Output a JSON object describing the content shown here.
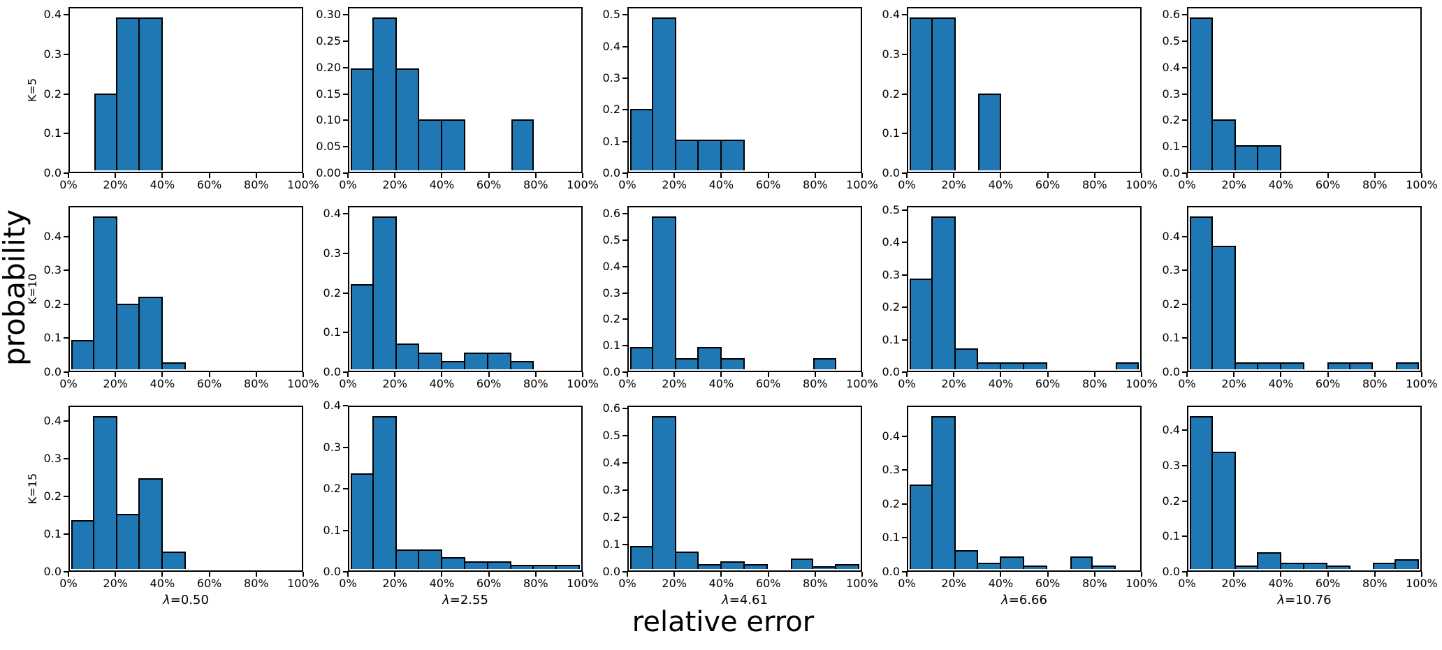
{
  "figure": {
    "ylabel": "probability",
    "xlabel": "relative error"
  },
  "style": {
    "bar_color": "#1f77b4",
    "edge_color": "#000000",
    "background": "#ffffff"
  },
  "chart_data": {
    "type": "bar",
    "subtype": "histogram-grid",
    "grid": "3 rows x 5 columns, shared x axis 0%-100%, bin width 10%",
    "row_labels": [
      "K=5",
      "K=10",
      "K=15"
    ],
    "col_labels": [
      "λ=0.50",
      "λ=2.55",
      "λ=4.61",
      "λ=6.66",
      "λ=10.76"
    ],
    "xlabel": "relative error",
    "ylabel": "probability",
    "xtick_labels": [
      "0%",
      "20%",
      "40%",
      "60%",
      "80%",
      "100%"
    ],
    "xtick_positions_pct": [
      0,
      20,
      40,
      60,
      80,
      100
    ],
    "bin_edges_pct": [
      0,
      10,
      20,
      30,
      40,
      50,
      60,
      70,
      80,
      90,
      100
    ],
    "subplots": [
      {
        "row": 0,
        "col": 0,
        "k_label": "K=5",
        "lambda_label": "λ=0.50",
        "values": [
          0,
          0.2,
          0.4,
          0.4,
          0,
          0,
          0,
          0,
          0,
          0
        ],
        "yticks": [
          0.0,
          0.1,
          0.2,
          0.3,
          0.4
        ],
        "ytick_decimals": 1,
        "ymax": 0.42
      },
      {
        "row": 0,
        "col": 1,
        "k_label": "K=5",
        "lambda_label": "λ=2.55",
        "values": [
          0.2,
          0.3,
          0.2,
          0.1,
          0.1,
          0,
          0,
          0.1,
          0,
          0
        ],
        "yticks": [
          0.0,
          0.05,
          0.1,
          0.15,
          0.2,
          0.25,
          0.3
        ],
        "ytick_decimals": 2,
        "ymax": 0.315
      },
      {
        "row": 0,
        "col": 2,
        "k_label": "K=5",
        "lambda_label": "λ=4.61",
        "values": [
          0.2,
          0.5,
          0.1,
          0.1,
          0.1,
          0,
          0,
          0,
          0,
          0
        ],
        "yticks": [
          0.0,
          0.1,
          0.2,
          0.3,
          0.4,
          0.5
        ],
        "ytick_decimals": 1,
        "ymax": 0.525
      },
      {
        "row": 0,
        "col": 3,
        "k_label": "K=5",
        "lambda_label": "λ=6.66",
        "values": [
          0.4,
          0.4,
          0,
          0.2,
          0,
          0,
          0,
          0,
          0,
          0
        ],
        "yticks": [
          0.0,
          0.1,
          0.2,
          0.3,
          0.4
        ],
        "ytick_decimals": 1,
        "ymax": 0.42
      },
      {
        "row": 0,
        "col": 4,
        "k_label": "K=5",
        "lambda_label": "λ=10.76",
        "values": [
          0.6,
          0.2,
          0.1,
          0.1,
          0,
          0,
          0,
          0,
          0,
          0
        ],
        "yticks": [
          0.0,
          0.1,
          0.2,
          0.3,
          0.4,
          0.5,
          0.6
        ],
        "ytick_decimals": 1,
        "ymax": 0.63
      },
      {
        "row": 1,
        "col": 0,
        "k_label": "K=10",
        "lambda_label": "λ=0.50",
        "values": [
          0.089,
          0.467,
          0.2,
          0.222,
          0.022,
          0,
          0,
          0,
          0,
          0
        ],
        "yticks": [
          0.0,
          0.1,
          0.2,
          0.3,
          0.4
        ],
        "ytick_decimals": 1,
        "ymax": 0.49
      },
      {
        "row": 1,
        "col": 1,
        "k_label": "K=10",
        "lambda_label": "λ=2.55",
        "values": [
          0.222,
          0.4,
          0.067,
          0.044,
          0.022,
          0.044,
          0.044,
          0.022,
          0,
          0
        ],
        "yticks": [
          0.0,
          0.1,
          0.2,
          0.3,
          0.4
        ],
        "ytick_decimals": 1,
        "ymax": 0.42
      },
      {
        "row": 1,
        "col": 2,
        "k_label": "K=10",
        "lambda_label": "λ=4.61",
        "values": [
          0.089,
          0.6,
          0.044,
          0.089,
          0.044,
          0,
          0,
          0,
          0.044,
          0
        ],
        "yticks": [
          0.0,
          0.1,
          0.2,
          0.3,
          0.4,
          0.5,
          0.6
        ],
        "ytick_decimals": 1,
        "ymax": 0.63
      },
      {
        "row": 1,
        "col": 3,
        "k_label": "K=10",
        "lambda_label": "λ=6.66",
        "values": [
          0.289,
          0.489,
          0.067,
          0.022,
          0.022,
          0.022,
          0,
          0,
          0,
          0.022
        ],
        "yticks": [
          0.0,
          0.1,
          0.2,
          0.3,
          0.4,
          0.5
        ],
        "ytick_decimals": 1,
        "ymax": 0.513
      },
      {
        "row": 1,
        "col": 4,
        "k_label": "K=10",
        "lambda_label": "λ=10.76",
        "values": [
          0.467,
          0.378,
          0.022,
          0.022,
          0.022,
          0,
          0.022,
          0.022,
          0,
          0.022
        ],
        "yticks": [
          0.0,
          0.1,
          0.2,
          0.3,
          0.4
        ],
        "ytick_decimals": 1,
        "ymax": 0.49
      },
      {
        "row": 2,
        "col": 0,
        "k_label": "K=15",
        "lambda_label": "λ=0.50",
        "values": [
          0.133,
          0.419,
          0.152,
          0.248,
          0.048,
          0,
          0,
          0,
          0,
          0
        ],
        "yticks": [
          0.0,
          0.1,
          0.2,
          0.3,
          0.4
        ],
        "ytick_decimals": 1,
        "ymax": 0.44
      },
      {
        "row": 2,
        "col": 1,
        "k_label": "K=15",
        "lambda_label": "λ=2.55",
        "values": [
          0.238,
          0.381,
          0.048,
          0.048,
          0.029,
          0.019,
          0.019,
          0.01,
          0.01,
          0.01
        ],
        "yticks": [
          0.0,
          0.1,
          0.2,
          0.3,
          0.4
        ],
        "ytick_decimals": 1,
        "ymax": 0.4
      },
      {
        "row": 2,
        "col": 2,
        "k_label": "K=15",
        "lambda_label": "λ=4.61",
        "values": [
          0.088,
          0.58,
          0.067,
          0.019,
          0.029,
          0.019,
          0,
          0.039,
          0.01,
          0.019
        ],
        "yticks": [
          0.0,
          0.1,
          0.2,
          0.3,
          0.4,
          0.5,
          0.6
        ],
        "ytick_decimals": 1,
        "ymax": 0.609
      },
      {
        "row": 2,
        "col": 3,
        "k_label": "K=15",
        "lambda_label": "λ=6.66",
        "values": [
          0.257,
          0.466,
          0.058,
          0.019,
          0.039,
          0.01,
          0,
          0.039,
          0.01,
          0
        ],
        "yticks": [
          0.0,
          0.1,
          0.2,
          0.3,
          0.4
        ],
        "ytick_decimals": 1,
        "ymax": 0.49
      },
      {
        "row": 2,
        "col": 4,
        "k_label": "K=15",
        "lambda_label": "λ=10.76",
        "values": [
          0.447,
          0.343,
          0.01,
          0.049,
          0.019,
          0.019,
          0.01,
          0,
          0.019,
          0.029
        ],
        "yticks": [
          0.0,
          0.1,
          0.2,
          0.3,
          0.4
        ],
        "ytick_decimals": 1,
        "ymax": 0.47
      }
    ]
  }
}
